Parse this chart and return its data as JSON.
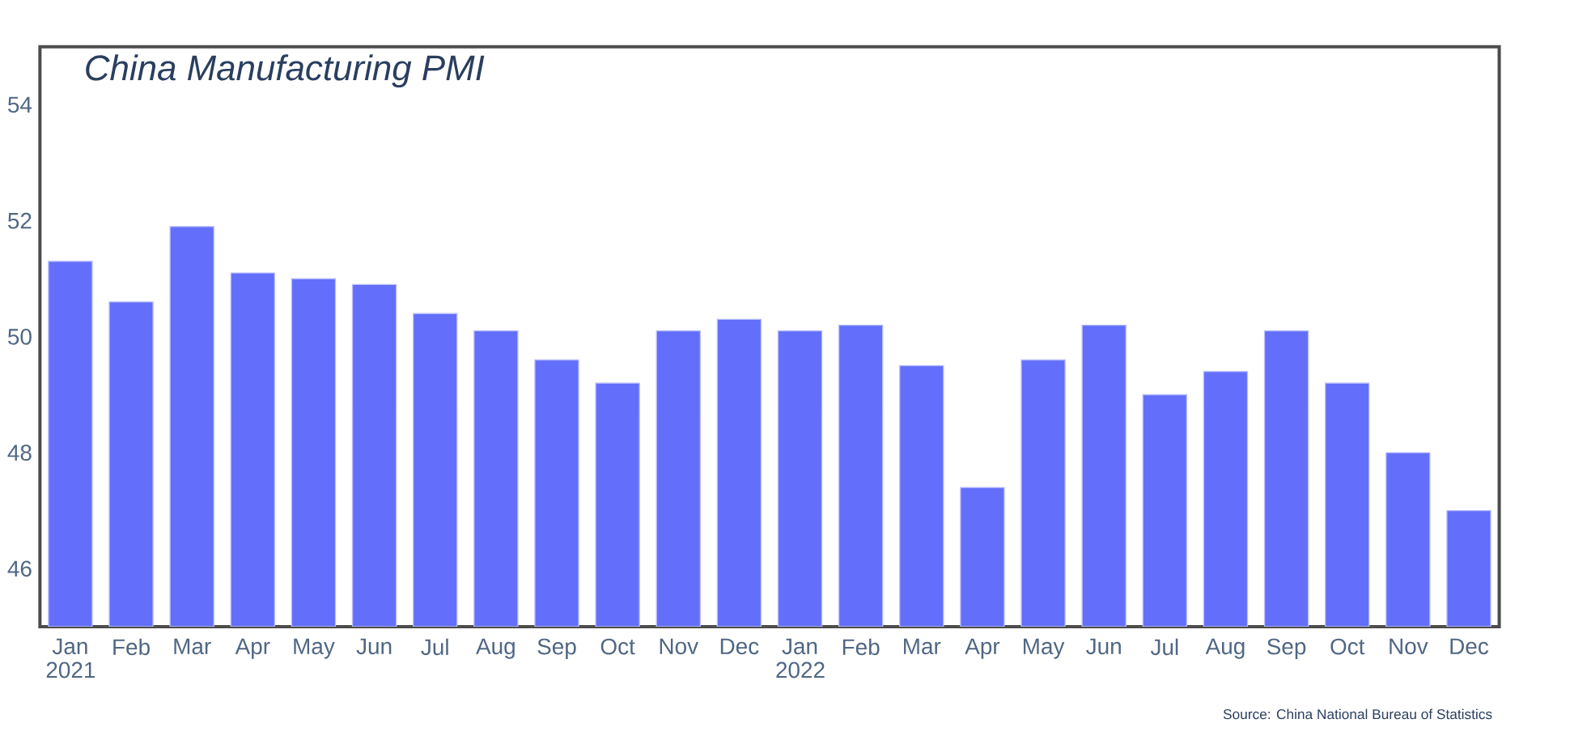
{
  "chart_data": {
    "type": "bar",
    "title": "China Manufacturing PMI",
    "categories": [
      "Jan 2021",
      "Feb",
      "Mar",
      "Apr",
      "May",
      "Jun",
      "Jul",
      "Aug",
      "Sep",
      "Oct",
      "Nov",
      "Dec",
      "Jan 2022",
      "Feb",
      "Mar",
      "Apr",
      "May",
      "Jun",
      "Jul",
      "Aug",
      "Sep",
      "Oct",
      "Nov",
      "Dec"
    ],
    "values": [
      51.3,
      50.6,
      51.9,
      51.1,
      51.0,
      50.9,
      50.4,
      50.1,
      49.6,
      49.2,
      50.1,
      50.3,
      50.1,
      50.2,
      49.5,
      47.4,
      49.6,
      50.2,
      49.0,
      49.4,
      50.1,
      49.2,
      48.0,
      47.0
    ],
    "color": "#636efa",
    "ylim": [
      45,
      55
    ],
    "yticks": [
      46,
      48,
      50,
      52,
      54
    ],
    "grid": false,
    "annotations": [
      "Source: China National Bureau of Statistics"
    ]
  }
}
